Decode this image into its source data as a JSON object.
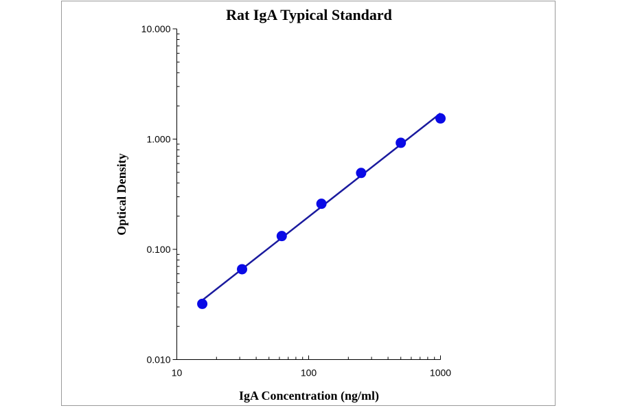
{
  "chart_data": {
    "type": "scatter",
    "title": "Rat IgA Typical Standard",
    "xlabel": "IgA Concentration (ng/ml)",
    "ylabel": "Optical Density",
    "xscale": "log",
    "yscale": "log",
    "xlim": [
      10,
      1000
    ],
    "ylim": [
      0.01,
      10
    ],
    "xticks": [
      "10",
      "100",
      "1000"
    ],
    "yticks": [
      "0.010",
      "0.100",
      "1.000",
      "10.000"
    ],
    "grid": false,
    "legend": "none",
    "fit_line": "linear fit on log-log axes",
    "colors": {
      "points": "#0a0ae6",
      "line": "#1a1a9e"
    },
    "x": [
      15.6,
      31.25,
      62.5,
      125,
      250,
      500,
      1000
    ],
    "y": [
      0.032,
      0.066,
      0.132,
      0.259,
      0.493,
      0.925,
      1.54
    ]
  }
}
